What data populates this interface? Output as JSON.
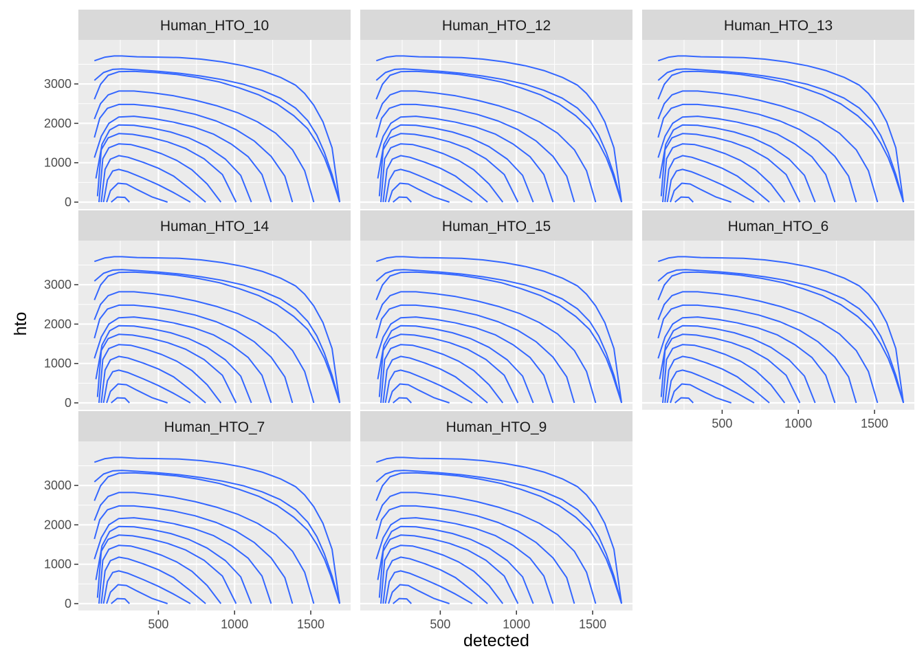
{
  "chart_data": {
    "type": "line",
    "xlabel": "detected",
    "ylabel": "hto",
    "xticks": [
      500,
      1000,
      1500
    ],
    "yticks": [
      0,
      1000,
      2000,
      3000
    ],
    "xlim": [
      40,
      1740
    ],
    "ylim": [
      -170,
      3960
    ],
    "facets": [
      "Human_HTO_10",
      "Human_HTO_12",
      "Human_HTO_13",
      "Human_HTO_14",
      "Human_HTO_15",
      "Human_HTO_6",
      "Human_HTO_7",
      "Human_HTO_9"
    ],
    "line_color": "#3366ff",
    "panel_background": "#ebebeb",
    "strip_background": "#d9d9d9",
    "grid": true,
    "series": [
      {
        "x": [
          190,
          230,
          280,
          310
        ],
        "y": [
          0,
          130,
          120,
          0
        ]
      },
      {
        "x": [
          160,
          185,
          235,
          290,
          360,
          460,
          560
        ],
        "y": [
          0,
          290,
          480,
          460,
          320,
          130,
          0
        ]
      },
      {
        "x": [
          140,
          165,
          200,
          240,
          300,
          400,
          500,
          600,
          710
        ],
        "y": [
          0,
          560,
          790,
          830,
          770,
          610,
          440,
          240,
          0
        ]
      },
      {
        "x": [
          125,
          150,
          185,
          240,
          300,
          400,
          500,
          600,
          700,
          810
        ],
        "y": [
          0,
          830,
          1090,
          1180,
          1140,
          1010,
          860,
          660,
          360,
          0
        ]
      },
      {
        "x": [
          110,
          135,
          175,
          240,
          320,
          420,
          520,
          620,
          720,
          820,
          910
        ],
        "y": [
          0,
          1100,
          1380,
          1480,
          1460,
          1360,
          1230,
          1060,
          820,
          460,
          0
        ]
      },
      {
        "x": [
          100,
          125,
          170,
          240,
          330,
          450,
          560,
          680,
          800,
          920,
          1010
        ],
        "y": [
          150,
          1330,
          1630,
          1740,
          1720,
          1640,
          1530,
          1360,
          1100,
          700,
          0
        ]
      },
      {
        "x": [
          90,
          130,
          180,
          240,
          340,
          460,
          580,
          700,
          820,
          940,
          1040,
          1110
        ],
        "y": [
          600,
          1470,
          1830,
          1960,
          1950,
          1880,
          1780,
          1630,
          1410,
          1090,
          680,
          0
        ]
      },
      {
        "x": [
          80,
          125,
          175,
          240,
          340,
          470,
          600,
          730,
          860,
          980,
          1090,
          1180,
          1240
        ],
        "y": [
          1130,
          1670,
          2000,
          2160,
          2180,
          2120,
          2030,
          1910,
          1730,
          1470,
          1150,
          700,
          0
        ]
      },
      {
        "x": [
          80,
          115,
          165,
          240,
          340,
          470,
          600,
          740,
          880,
          1010,
          1130,
          1240,
          1330,
          1380
        ],
        "y": [
          1640,
          2130,
          2380,
          2480,
          2480,
          2430,
          2350,
          2230,
          2060,
          1840,
          1550,
          1160,
          660,
          0
        ]
      },
      {
        "x": [
          80,
          120,
          170,
          240,
          340,
          470,
          600,
          740,
          880,
          1020,
          1150,
          1270,
          1380,
          1460,
          1520
        ],
        "y": [
          2110,
          2500,
          2720,
          2820,
          2820,
          2770,
          2700,
          2590,
          2450,
          2270,
          2040,
          1750,
          1330,
          800,
          0
        ]
      },
      {
        "x": [
          80,
          120,
          170,
          240,
          340,
          480,
          620,
          760,
          900,
          1030,
          1160,
          1280,
          1390,
          1480,
          1540,
          1590,
          1630,
          1690
        ],
        "y": [
          2610,
          2990,
          3220,
          3310,
          3320,
          3290,
          3240,
          3160,
          3050,
          2900,
          2720,
          2490,
          2190,
          1860,
          1500,
          1130,
          720,
          0
        ]
      },
      {
        "x": [
          80,
          140,
          200,
          260,
          360,
          500,
          640,
          780,
          920,
          1060,
          1180,
          1300,
          1400,
          1480,
          1540,
          1590,
          1640,
          1690
        ],
        "y": [
          3090,
          3290,
          3370,
          3380,
          3360,
          3320,
          3270,
          3200,
          3110,
          2990,
          2840,
          2640,
          2390,
          2070,
          1700,
          1260,
          700,
          0
        ]
      },
      {
        "x": [
          80,
          150,
          210,
          260,
          360,
          500,
          640,
          780,
          920,
          1060,
          1180,
          1300,
          1400,
          1460,
          1520,
          1580,
          1640,
          1690
        ],
        "y": [
          3590,
          3680,
          3710,
          3710,
          3690,
          3680,
          3670,
          3630,
          3560,
          3460,
          3340,
          3170,
          2970,
          2760,
          2460,
          2040,
          1380,
          0
        ]
      }
    ]
  }
}
